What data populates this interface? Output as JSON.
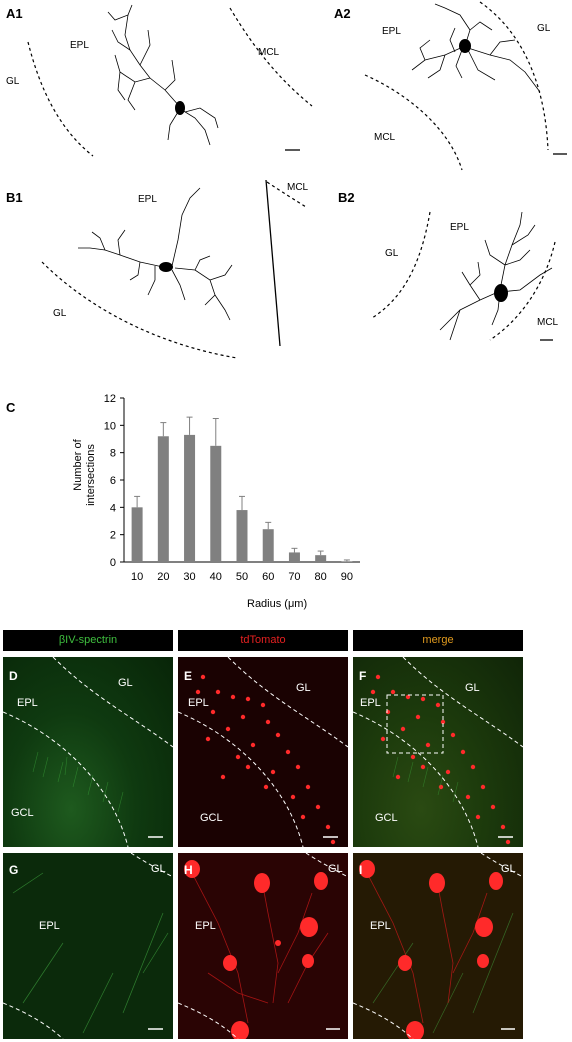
{
  "panels": {
    "A1": {
      "letter": "A1",
      "regions": [
        "EPL",
        "MCL",
        "GL"
      ]
    },
    "A2": {
      "letter": "A2",
      "regions": [
        "EPL",
        "GL",
        "MCL"
      ]
    },
    "B1": {
      "letter": "B1",
      "regions": [
        "EPL",
        "MCL",
        "GL"
      ]
    },
    "B2": {
      "letter": "B2",
      "regions": [
        "EPL",
        "GL",
        "MCL"
      ]
    }
  },
  "chart_label": "C",
  "chart_data": {
    "type": "bar",
    "categories": [
      "10",
      "20",
      "30",
      "40",
      "50",
      "60",
      "70",
      "80",
      "90"
    ],
    "values": [
      4.0,
      9.2,
      9.3,
      8.5,
      3.8,
      2.4,
      0.7,
      0.5,
      0.05
    ],
    "errors": [
      0.8,
      1.0,
      1.3,
      2.0,
      1.0,
      0.5,
      0.3,
      0.3,
      0.1
    ],
    "xlabel": "Radius (μm)",
    "ylabel_line1": "Number of",
    "ylabel_line2": "intersections",
    "yticks": [
      "0",
      "2",
      "4",
      "6",
      "8",
      "10",
      "12"
    ],
    "ylim": [
      0,
      12
    ],
    "bar_color": "#808080"
  },
  "headers": [
    {
      "text": "βIV-spectrin",
      "color": "#3fbf3f"
    },
    {
      "text": "tdTomato",
      "color": "#e32020"
    },
    {
      "text": "merge",
      "color": "#e09a1e"
    }
  ],
  "micrographs_top": [
    {
      "letter": "D",
      "labels": [
        "EPL",
        "GL",
        "GCL"
      ]
    },
    {
      "letter": "E",
      "labels": [
        "EPL",
        "GL",
        "GCL"
      ]
    },
    {
      "letter": "F",
      "labels": [
        "EPL",
        "GL",
        "GCL"
      ]
    }
  ],
  "micrographs_bottom": [
    {
      "letter": "G",
      "labels": [
        "EPL",
        "GL"
      ]
    },
    {
      "letter": "H",
      "labels": [
        "EPL",
        "GL"
      ]
    },
    {
      "letter": "I",
      "labels": [
        "EPL",
        "GL"
      ]
    }
  ],
  "colors": {
    "green": "#2f9a2f",
    "red": "#ff2a2a"
  }
}
